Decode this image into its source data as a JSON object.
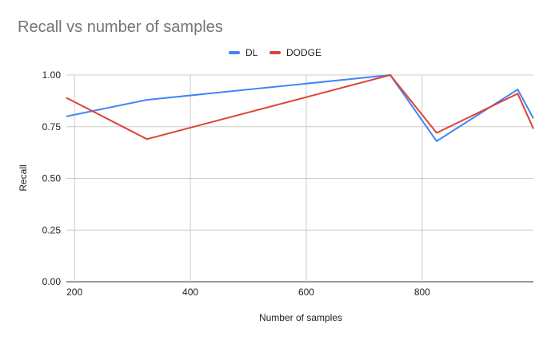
{
  "chart_data": {
    "type": "line",
    "title": "Recall vs number of samples",
    "xlabel": "Number of samples",
    "ylabel": "Recall",
    "xlim": [
      186,
      992
    ],
    "ylim": [
      0,
      1
    ],
    "x_ticks": [
      200,
      400,
      600,
      800
    ],
    "x_tick_labels": [
      "200",
      "400",
      "600",
      "800"
    ],
    "y_ticks": [
      0,
      0.25,
      0.5,
      0.75,
      1.0
    ],
    "y_tick_labels": [
      "0.00",
      "0.25",
      "0.50",
      "0.75",
      "1.00"
    ],
    "grid": true,
    "legend_position": "top",
    "series": [
      {
        "name": "DL",
        "color": "#4285f4",
        "points": [
          [
            186,
            0.8
          ],
          [
            325,
            0.88
          ],
          [
            745,
            1.0
          ],
          [
            825,
            0.68
          ],
          [
            965,
            0.93
          ],
          [
            992,
            0.79
          ]
        ]
      },
      {
        "name": "DODGE",
        "color": "#db4437",
        "points": [
          [
            186,
            0.89
          ],
          [
            325,
            0.69
          ],
          [
            745,
            1.0
          ],
          [
            825,
            0.72
          ],
          [
            965,
            0.91
          ],
          [
            992,
            0.74
          ]
        ]
      }
    ]
  }
}
